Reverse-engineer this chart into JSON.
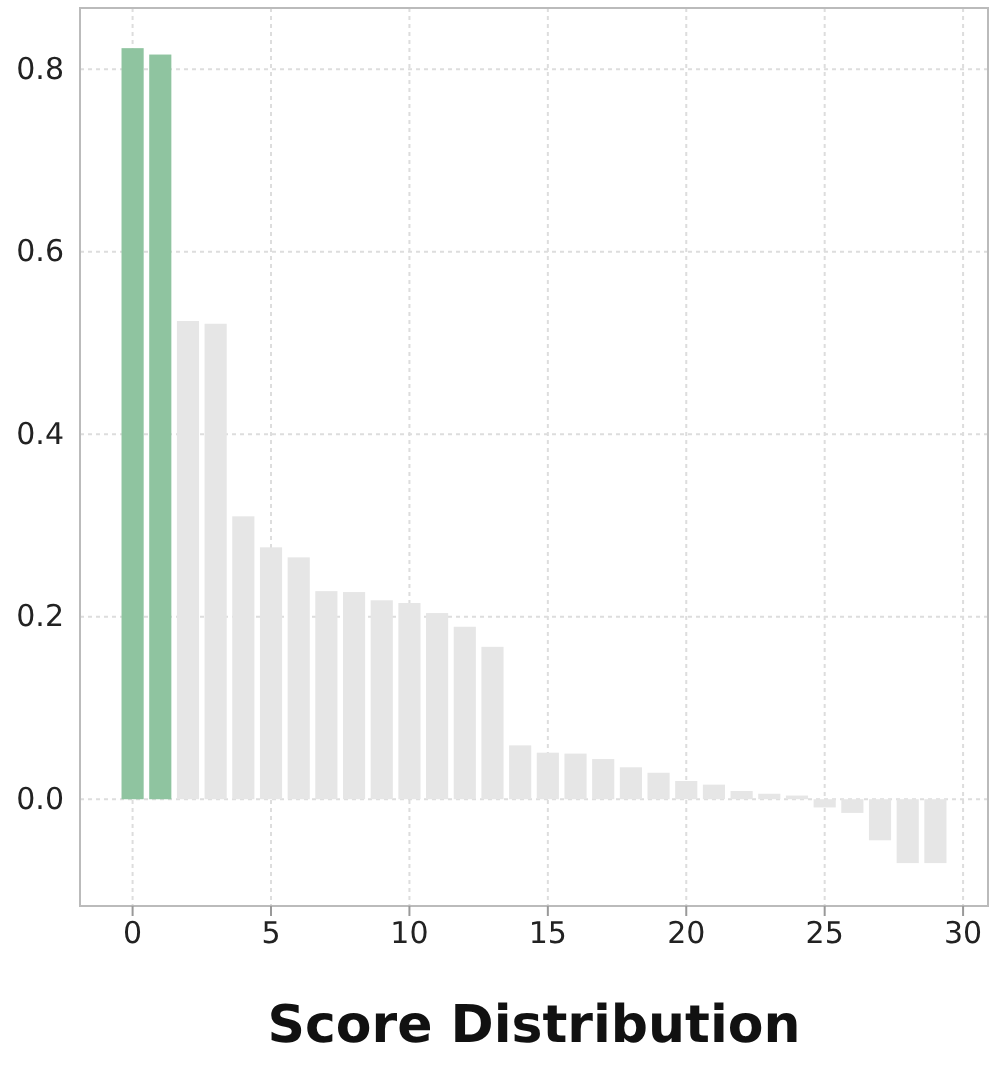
{
  "chart_data": {
    "type": "bar",
    "xlabel": "Score Distribution",
    "x": [
      0,
      1,
      2,
      3,
      4,
      5,
      6,
      7,
      8,
      9,
      10,
      11,
      12,
      13,
      14,
      15,
      16,
      17,
      18,
      19,
      20,
      21,
      22,
      23,
      24,
      25,
      26,
      27,
      28,
      29
    ],
    "values": [
      0.823,
      0.816,
      0.524,
      0.521,
      0.31,
      0.276,
      0.265,
      0.228,
      0.227,
      0.218,
      0.215,
      0.204,
      0.189,
      0.167,
      0.059,
      0.051,
      0.05,
      0.044,
      0.035,
      0.029,
      0.02,
      0.016,
      0.009,
      0.006,
      0.004,
      -0.009,
      -0.015,
      -0.045,
      -0.07,
      -0.07
    ],
    "colors": [
      "#8fc4a0",
      "#8fc4a0",
      "#e6e6e6",
      "#e6e6e6",
      "#e6e6e6",
      "#e6e6e6",
      "#e6e6e6",
      "#e6e6e6",
      "#e6e6e6",
      "#e6e6e6",
      "#e6e6e6",
      "#e6e6e6",
      "#e6e6e6",
      "#e6e6e6",
      "#e6e6e6",
      "#e6e6e6",
      "#e6e6e6",
      "#e6e6e6",
      "#e6e6e6",
      "#e6e6e6",
      "#e6e6e6",
      "#e6e6e6",
      "#e6e6e6",
      "#e6e6e6",
      "#e6e6e6",
      "#e6e6e6",
      "#e6e6e6",
      "#e6e6e6",
      "#e6e6e6",
      "#e6e6e6"
    ],
    "xlim": [
      -1.9,
      30.9
    ],
    "xticks": [
      0,
      5,
      10,
      15,
      20,
      25,
      30
    ],
    "ylim": [
      -0.117,
      0.867
    ],
    "yticks": [
      {
        "value": 0,
        "label": "0.0"
      },
      {
        "value": 0.2,
        "label": "0.2"
      },
      {
        "value": 0.4,
        "label": "0.4"
      },
      {
        "value": 0.6,
        "label": "0.6"
      },
      {
        "value": 0.8,
        "label": "0.8"
      }
    ],
    "grid": true
  }
}
